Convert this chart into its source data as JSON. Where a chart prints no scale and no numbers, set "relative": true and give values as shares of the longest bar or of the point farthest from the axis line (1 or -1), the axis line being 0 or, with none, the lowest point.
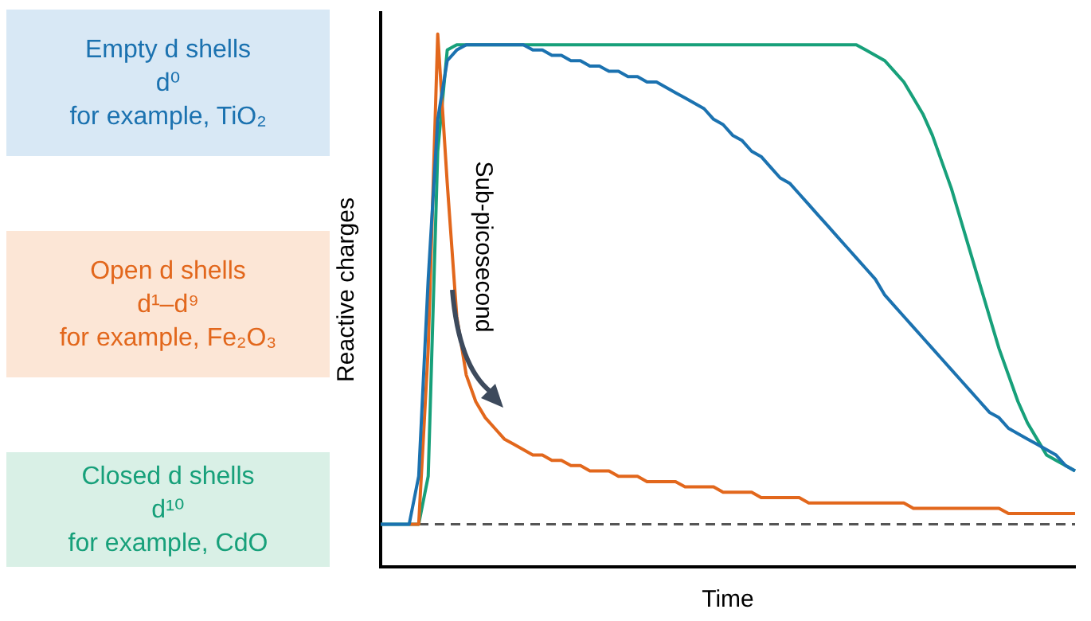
{
  "chart_data": {
    "type": "line",
    "relative": true,
    "xlabel": "Time",
    "ylabel": "Reactive charges",
    "legend": "left",
    "marker": "none",
    "annotations": [
      "Sub-picosecond"
    ],
    "categories": [
      null,
      null,
      null,
      null,
      null,
      null,
      null,
      null,
      null,
      null,
      null,
      null,
      null,
      null,
      null,
      null,
      null,
      null,
      null,
      null,
      null,
      null,
      null,
      null,
      null,
      null,
      null,
      null,
      null,
      null,
      null,
      null,
      null,
      null,
      null,
      null,
      null,
      null,
      null,
      null,
      null,
      null,
      null,
      null,
      null,
      null,
      null,
      null,
      null,
      null,
      null,
      null,
      null,
      null,
      null,
      null,
      null,
      null,
      null,
      null,
      null,
      null,
      null,
      null,
      null,
      null,
      null,
      null,
      null,
      null,
      null,
      null,
      null,
      null
    ],
    "series": [
      {
        "name": "Empty d shells\nd⁰\nfor example, TiO₂",
        "color": "#1b72b0",
        "values": [
          0.08,
          0.08,
          0.08,
          0.08,
          0.17,
          0.54,
          0.84,
          0.95,
          0.97,
          0.98,
          0.98,
          0.98,
          0.98,
          0.98,
          0.98,
          0.98,
          0.97,
          0.97,
          0.96,
          0.96,
          0.95,
          0.95,
          0.94,
          0.94,
          0.93,
          0.93,
          0.92,
          0.92,
          0.91,
          0.91,
          0.9,
          0.89,
          0.88,
          0.87,
          0.86,
          0.84,
          0.83,
          0.81,
          0.8,
          0.78,
          0.77,
          0.75,
          0.73,
          0.72,
          0.7,
          0.68,
          0.66,
          0.64,
          0.62,
          0.6,
          0.58,
          0.56,
          0.54,
          0.51,
          0.49,
          0.47,
          0.45,
          0.43,
          0.41,
          0.39,
          0.37,
          0.35,
          0.33,
          0.31,
          0.29,
          0.28,
          0.26,
          0.25,
          0.24,
          0.23,
          0.22,
          0.21,
          0.19,
          0.18
        ]
      },
      {
        "name": "Open d shells\nd¹–d⁹\nfor example, Fe₂O₃",
        "color": "#e2671c",
        "values": [
          null,
          null,
          null,
          0.08,
          0.08,
          0.41,
          1.0,
          0.72,
          0.47,
          0.36,
          0.31,
          0.28,
          0.26,
          0.24,
          0.23,
          0.22,
          0.21,
          0.21,
          0.2,
          0.2,
          0.19,
          0.19,
          0.18,
          0.18,
          0.18,
          0.17,
          0.17,
          0.17,
          0.16,
          0.16,
          0.16,
          0.16,
          0.15,
          0.15,
          0.15,
          0.15,
          0.14,
          0.14,
          0.14,
          0.14,
          0.13,
          0.13,
          0.13,
          0.13,
          0.13,
          0.12,
          0.12,
          0.12,
          0.12,
          0.12,
          0.12,
          0.12,
          0.12,
          0.12,
          0.12,
          0.12,
          0.11,
          0.11,
          0.11,
          0.11,
          0.11,
          0.11,
          0.11,
          0.11,
          0.11,
          0.11,
          0.1,
          0.1,
          0.1,
          0.1,
          0.1,
          0.1,
          0.1,
          0.1
        ]
      },
      {
        "name": "Closed d shells\nd¹⁰\nfor example, CdO",
        "color": "#17a07a",
        "values": [
          0.08,
          0.08,
          0.08,
          0.08,
          0.08,
          0.17,
          0.78,
          0.97,
          0.98,
          0.98,
          0.98,
          0.98,
          0.98,
          0.98,
          0.98,
          0.98,
          0.98,
          0.98,
          0.98,
          0.98,
          0.98,
          0.98,
          0.98,
          0.98,
          0.98,
          0.98,
          0.98,
          0.98,
          0.98,
          0.98,
          0.98,
          0.98,
          0.98,
          0.98,
          0.98,
          0.98,
          0.98,
          0.98,
          0.98,
          0.98,
          0.98,
          0.98,
          0.98,
          0.98,
          0.98,
          0.98,
          0.98,
          0.98,
          0.98,
          0.98,
          0.98,
          0.97,
          0.96,
          0.95,
          0.93,
          0.91,
          0.88,
          0.85,
          0.81,
          0.76,
          0.71,
          0.65,
          0.59,
          0.53,
          0.47,
          0.41,
          0.36,
          0.31,
          0.27,
          0.24,
          0.21,
          0.2,
          0.19,
          0.18
        ]
      }
    ],
    "ref_lines": [
      {
        "axis": "y",
        "value": 0.08,
        "color": "#555555",
        "line_style": "dashed"
      }
    ]
  }
}
